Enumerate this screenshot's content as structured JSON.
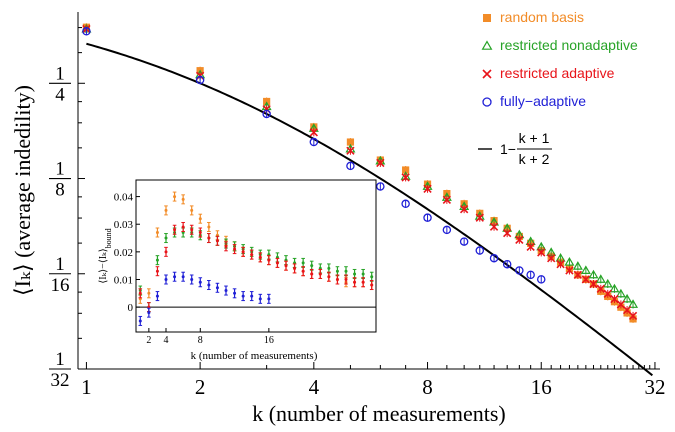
{
  "chart_data": [
    {
      "type": "scatter",
      "xlabel": "k (number of measurements)",
      "ylabel": "⟨I_k⟩ (average indedility)",
      "x_scale": "log2",
      "y_scale": "log2",
      "xlim": [
        0.95,
        33
      ],
      "ylim": [
        0.03125,
        0.42
      ],
      "x_ticks": [
        1,
        2,
        4,
        8,
        16,
        32
      ],
      "y_ticks": [
        {
          "value": 0.25,
          "num": "1",
          "den": "4"
        },
        {
          "value": 0.125,
          "num": "1",
          "den": "8"
        },
        {
          "value": 0.0625,
          "num": "1",
          "den": "16"
        },
        {
          "value": 0.03125,
          "num": "1",
          "den": "32"
        }
      ],
      "legend_position": "top-right",
      "curve": {
        "label": "1−(k+1)/(k+2)",
        "label_prefix": "1−",
        "label_num": "k + 1",
        "label_den": "k + 2",
        "color": "#000000"
      },
      "series": [
        {
          "name": "random basis",
          "marker": "square",
          "color": "#f28c28",
          "x": [
            1,
            2,
            3,
            4,
            5,
            6,
            7,
            8,
            9,
            10,
            11,
            12,
            13,
            14,
            15,
            16,
            17,
            18,
            19,
            20,
            21,
            22,
            23,
            24,
            25,
            26,
            27,
            28
          ],
          "y": [
            0.376,
            0.274,
            0.219,
            0.182,
            0.163,
            0.143,
            0.133,
            0.12,
            0.112,
            0.104,
            0.097,
            0.092,
            0.087,
            0.082,
            0.078,
            0.074,
            0.071,
            0.068,
            0.065,
            0.062,
            0.06,
            0.058,
            0.055,
            0.053,
            0.051,
            0.049,
            0.047,
            0.045
          ]
        },
        {
          "name": "restricted nonadaptive",
          "marker": "triangle",
          "color": "#27a327",
          "x": [
            1,
            2,
            3,
            4,
            5,
            6,
            7,
            8,
            9,
            10,
            11,
            12,
            13,
            14,
            15,
            16,
            17,
            18,
            19,
            20,
            21,
            22,
            23,
            24,
            25,
            26,
            27,
            28
          ],
          "y": [
            0.371,
            0.266,
            0.211,
            0.18,
            0.155,
            0.142,
            0.127,
            0.118,
            0.109,
            0.102,
            0.095,
            0.091,
            0.087,
            0.083,
            0.079,
            0.076,
            0.073,
            0.07,
            0.068,
            0.066,
            0.064,
            0.062,
            0.06,
            0.058,
            0.056,
            0.054,
            0.052,
            0.05
          ]
        },
        {
          "name": "restricted adaptive",
          "marker": "x",
          "color": "#e8141a",
          "x": [
            1,
            2,
            3,
            4,
            5,
            6,
            7,
            8,
            9,
            10,
            11,
            12,
            13,
            14,
            15,
            16,
            17,
            18,
            19,
            20,
            21,
            22,
            23,
            24,
            25,
            26,
            27,
            28
          ],
          "y": [
            0.371,
            0.264,
            0.207,
            0.175,
            0.153,
            0.14,
            0.126,
            0.116,
            0.107,
            0.1,
            0.094,
            0.088,
            0.084,
            0.08,
            0.076,
            0.073,
            0.07,
            0.067,
            0.064,
            0.062,
            0.06,
            0.058,
            0.056,
            0.054,
            0.052,
            0.05,
            0.048,
            0.046
          ]
        },
        {
          "name": "fully−adaptive",
          "marker": "circle",
          "color": "#1f1fd6",
          "x": [
            1,
            2,
            3,
            4,
            5,
            6,
            7,
            8,
            9,
            10,
            11,
            12,
            13,
            14,
            15,
            16
          ],
          "y": [
            0.365,
            0.256,
            0.2,
            0.163,
            0.137,
            0.118,
            0.104,
            0.094,
            0.086,
            0.079,
            0.074,
            0.07,
            0.067,
            0.064,
            0.062,
            0.06
          ]
        }
      ]
    },
    {
      "type": "scatter",
      "xlabel": "k (number of measurements)",
      "ylabel": "⟨I_k⟩−⟨I_k⟩_bound",
      "xlim": [
        0.5,
        28.5
      ],
      "ylim": [
        -0.009,
        0.046
      ],
      "x_ticks": [
        2,
        4,
        8,
        16
      ],
      "y_ticks": [
        0,
        0.01,
        0.02,
        0.03,
        0.04
      ],
      "y_tick_labels": [
        "0",
        "0.01",
        "0.02",
        "0.03",
        "0.04"
      ],
      "series": [
        {
          "name": "random basis",
          "color": "#f28c28",
          "x": [
            1,
            2,
            3,
            4,
            5,
            6,
            7,
            8,
            9,
            10,
            11,
            12,
            13,
            14,
            15,
            16,
            17,
            18,
            19,
            20,
            21,
            22,
            23,
            24,
            25,
            26,
            27,
            28
          ],
          "y": [
            0.003,
            0.005,
            0.027,
            0.035,
            0.04,
            0.039,
            0.035,
            0.032,
            0.029,
            0.026,
            0.024,
            0.022,
            0.02,
            0.019,
            0.018,
            0.017,
            0.016,
            0.015,
            0.014,
            0.013,
            0.012,
            0.012,
            0.011,
            0.01,
            0.009,
            0.009,
            0.009,
            0.008
          ]
        },
        {
          "name": "restricted nonadaptive",
          "color": "#27a327",
          "x": [
            1,
            2,
            3,
            4,
            5,
            6,
            7,
            8,
            9,
            10,
            11,
            12,
            13,
            14,
            15,
            16,
            17,
            18,
            19,
            20,
            21,
            22,
            23,
            24,
            25,
            26,
            27,
            28
          ],
          "y": [
            0.006,
            0.0,
            0.017,
            0.025,
            0.027,
            0.027,
            0.027,
            0.026,
            0.025,
            0.024,
            0.023,
            0.022,
            0.021,
            0.02,
            0.019,
            0.019,
            0.018,
            0.017,
            0.016,
            0.016,
            0.015,
            0.014,
            0.014,
            0.013,
            0.013,
            0.012,
            0.012,
            0.011
          ]
        },
        {
          "name": "restricted adaptive",
          "color": "#e8141a",
          "x": [
            1,
            2,
            3,
            4,
            5,
            6,
            7,
            8,
            9,
            10,
            11,
            12,
            13,
            14,
            15,
            16,
            17,
            18,
            19,
            20,
            21,
            22,
            23,
            24,
            25,
            26,
            27,
            28
          ],
          "y": [
            0.005,
            0.0,
            0.013,
            0.02,
            0.028,
            0.029,
            0.028,
            0.027,
            0.025,
            0.024,
            0.022,
            0.021,
            0.02,
            0.019,
            0.018,
            0.017,
            0.016,
            0.015,
            0.014,
            0.013,
            0.012,
            0.012,
            0.011,
            0.01,
            0.01,
            0.009,
            0.009,
            0.008
          ]
        },
        {
          "name": "fully−adaptive",
          "color": "#1f1fd6",
          "x": [
            1,
            2,
            3,
            4,
            5,
            6,
            7,
            8,
            9,
            10,
            11,
            12,
            13,
            14,
            15,
            16
          ],
          "y": [
            -0.005,
            -0.002,
            0.004,
            0.01,
            0.011,
            0.011,
            0.01,
            0.009,
            0.008,
            0.007,
            0.006,
            0.005,
            0.004,
            0.004,
            0.003,
            0.003
          ]
        }
      ]
    }
  ]
}
